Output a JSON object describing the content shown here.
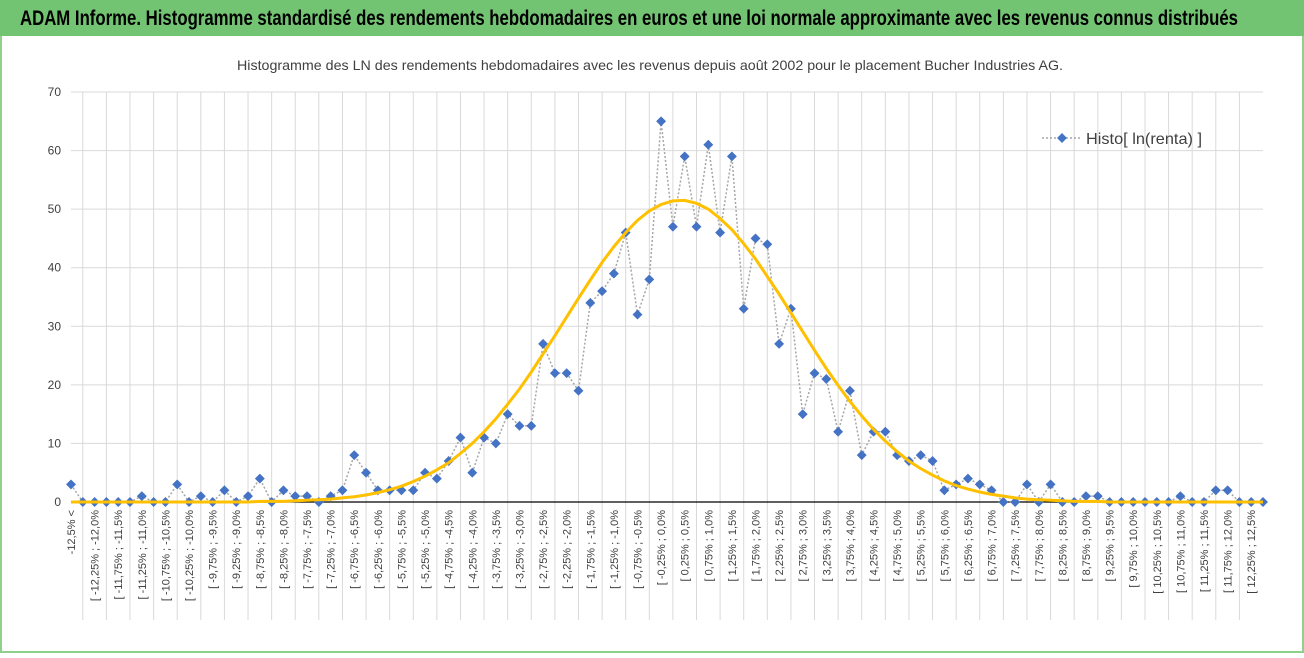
{
  "chart_data": {
    "type": "line",
    "header": "ADAM Informe. Histogramme standardisé des rendements hebdomadaires en euros et une loi normale approximante avec les revenus connus distribués",
    "title": "Histogramme  des LN des rendements hebdomadaires avec les revenus depuis août 2002  pour le placement Bucher Industries AG.",
    "categories": [
      "-12,5% <",
      null,
      "[ -12,25% ; -12,0%",
      null,
      "[ -11,75% ; -11,5%",
      null,
      "[ -11,25% ; -11,0%",
      null,
      "[ -10,75% ; -10,5%",
      null,
      "[ -10,25% ; -10,0%",
      null,
      "[ -9,75% ; -9,5%",
      null,
      "[ -9,25% ; -9,0%",
      null,
      "[ -8,75% ; -8,5%",
      null,
      "[ -8,25% ; -8,0%",
      null,
      "[ -7,75% ; -7,5%",
      null,
      "[ -7,25% ; -7,0%",
      null,
      "[ -6,75% ; -6,5%",
      null,
      "[ -6,25% ; -6,0%",
      null,
      "[ -5,75% ; -5,5%",
      null,
      "[ -5,25% ; -5,0%",
      null,
      "[ -4,75% ; -4,5%",
      null,
      "[ -4,25% ; -4,0%",
      null,
      "[ -3,75% ; -3,5%",
      null,
      "[ -3,25% ; -3,0%",
      null,
      "[ -2,75% ; -2,5%",
      null,
      "[ -2,25% ; -2,0%",
      null,
      "[ -1,75% ; -1,5%",
      null,
      "[ -1,25% ; -1,0%",
      null,
      "[ -0,75% ; -0,5%",
      null,
      "[ -0,25% ; 0,0%",
      null,
      "[ 0,25% ; 0,5%",
      null,
      "[ 0,75% ; 1,0%",
      null,
      "[ 1,25% ; 1,5%",
      null,
      "[ 1,75% ; 2,0%",
      null,
      "[ 2,25% ; 2,5%",
      null,
      "[ 2,75% ; 3,0%",
      null,
      "[ 3,25% ; 3,5%",
      null,
      "[ 3,75% ; 4,0%",
      null,
      "[ 4,25% ; 4,5%",
      null,
      "[ 4,75% ; 5,0%",
      null,
      "[ 5,25% ; 5,5%",
      null,
      "[ 5,75% ; 6,0%",
      null,
      "[ 6,25% ; 6,5%",
      null,
      "[ 6,75% ; 7,0%",
      null,
      "[ 7,25% ; 7,5%",
      null,
      "[ 7,75% ; 8,0%",
      null,
      "[ 8,25% ; 8,5%",
      null,
      "[ 8,75% ; 9,0%",
      null,
      "[ 9,25% ; 9,5%",
      null,
      "[ 9,75% ; 10,0%",
      null,
      "[ 10,25% ; 10,5%",
      null,
      "[ 10,75% ; 11,0%",
      null,
      "[ 11,25% ; 11,5%",
      null,
      "[ 11,75% ; 12,0%",
      null,
      "[ 12,25% ; 12,5%",
      null
    ],
    "series": [
      {
        "name": "Histo[ ln(renta) ]",
        "color": "#4472c4",
        "style": "markers-dotted",
        "values": [
          3,
          0,
          0,
          0,
          0,
          0,
          1,
          0,
          0,
          3,
          0,
          1,
          0,
          2,
          0,
          1,
          4,
          0,
          2,
          1,
          1,
          0,
          1,
          2,
          8,
          5,
          2,
          2,
          2,
          2,
          5,
          4,
          7,
          11,
          5,
          11,
          10,
          15,
          13,
          13,
          27,
          22,
          22,
          19,
          34,
          36,
          39,
          46,
          32,
          38,
          65,
          47,
          59,
          47,
          61,
          46,
          59,
          33,
          45,
          44,
          27,
          33,
          15,
          22,
          21,
          12,
          19,
          8,
          12,
          12,
          8,
          7,
          8,
          7,
          2,
          3,
          4,
          3,
          2,
          0,
          0,
          3,
          0,
          3,
          0,
          0,
          1,
          1,
          0,
          0,
          0,
          0,
          0,
          0,
          1,
          0,
          0,
          2,
          2,
          0,
          0,
          0
        ]
      },
      {
        "color": "#ffc000",
        "style": "smooth",
        "values": [
          0,
          0,
          0,
          0,
          0,
          0,
          0,
          0,
          0,
          0,
          0,
          0,
          0,
          0,
          0,
          0,
          0.1,
          0.1,
          0.1,
          0.2,
          0.3,
          0.4,
          0.5,
          0.7,
          0.9,
          1.2,
          1.6,
          2.1,
          2.7,
          3.5,
          4.4,
          5.5,
          6.7,
          8.3,
          10.0,
          12.0,
          14.2,
          16.7,
          19.3,
          22.2,
          25.3,
          28.4,
          31.6,
          34.8,
          37.9,
          40.9,
          43.6,
          46.0,
          48.1,
          49.7,
          50.8,
          51.4,
          51.5,
          51.0,
          50.0,
          48.4,
          46.5,
          44.1,
          41.5,
          38.5,
          35.5,
          32.3,
          29.1,
          25.9,
          22.8,
          19.9,
          17.2,
          14.7,
          12.4,
          10.4,
          8.6,
          7.0,
          5.7,
          4.6,
          3.6,
          2.8,
          2.2,
          1.7,
          1.3,
          1.0,
          0.7,
          0.5,
          0.4,
          0.3,
          0.2,
          0.1,
          0.1,
          0.1,
          0,
          0,
          0,
          0,
          0,
          0,
          0,
          0,
          0,
          0,
          0,
          0,
          0,
          0
        ]
      }
    ],
    "ylim": [
      0,
      70
    ],
    "yticks": [
      0,
      10,
      20,
      30,
      40,
      50,
      60,
      70
    ],
    "grid": true,
    "legend": "upper right"
  }
}
